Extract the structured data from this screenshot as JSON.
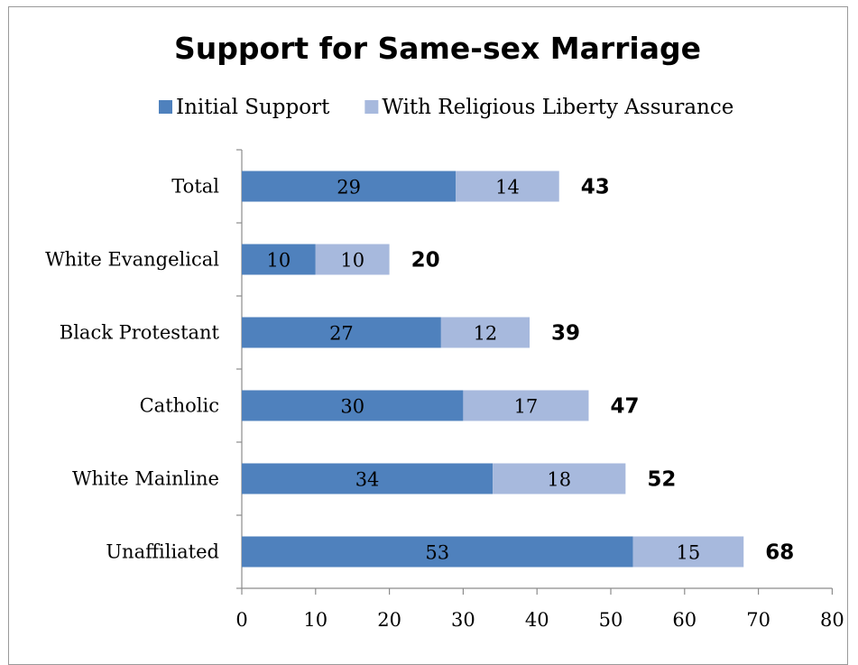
{
  "chart_data": {
    "type": "bar",
    "orientation": "horizontal",
    "stacked": true,
    "title": "Support for Same-sex Marriage",
    "categories": [
      "Total",
      "White Evangelical",
      "Black Protestant",
      "Catholic",
      "White Mainline",
      "Unaffiliated"
    ],
    "series": [
      {
        "name": "Initial Support",
        "values": [
          29,
          10,
          27,
          30,
          34,
          53
        ],
        "color": "#4f81bd"
      },
      {
        "name": "With Religious Liberty Assurance",
        "values": [
          14,
          10,
          12,
          17,
          18,
          15
        ],
        "color": "#a7b9dd"
      }
    ],
    "totals": [
      43,
      20,
      39,
      47,
      52,
      68
    ],
    "xlim": [
      0,
      80
    ],
    "xticks": [
      0,
      10,
      20,
      30,
      40,
      50,
      60,
      70,
      80
    ],
    "xlabel": "",
    "ylabel": "",
    "legend": "top",
    "grid": false
  }
}
